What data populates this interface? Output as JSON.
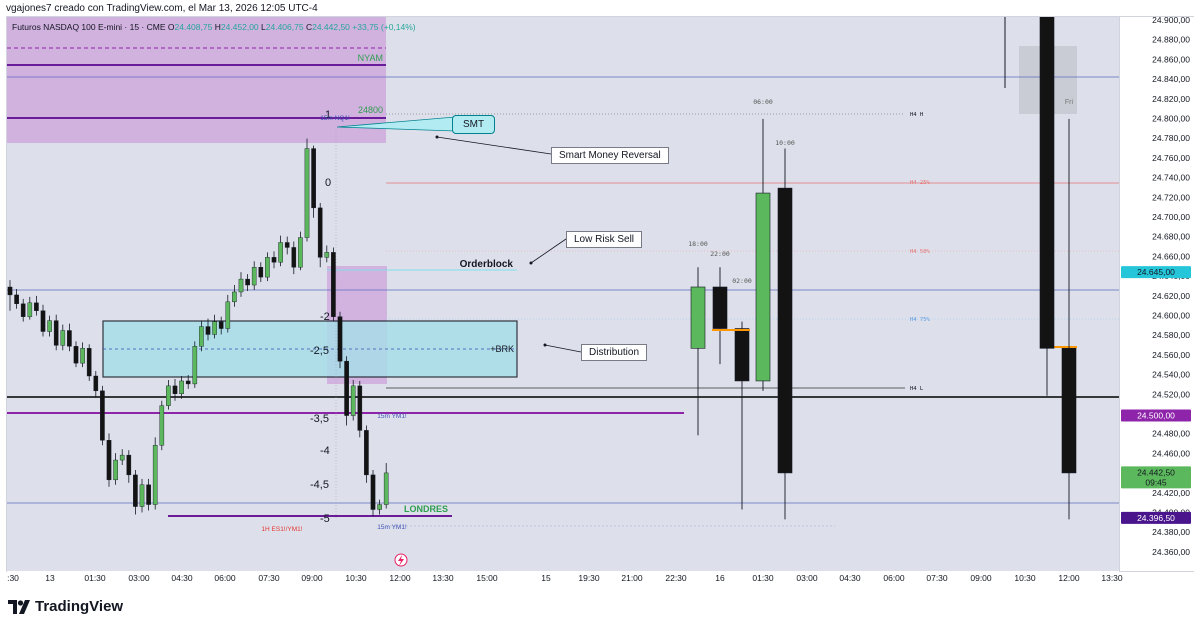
{
  "header": {
    "author_line": "vgajones7 creado con TradingView.com, el Mar 13, 2026 12:05 UTC-4",
    "symbol": "Futuros NASDAQ 100 E-mini · 15 · CME",
    "ohlc": [
      {
        "k": "O",
        "v": "24.408,75"
      },
      {
        "k": "H",
        "v": "24.452,00"
      },
      {
        "k": "L",
        "v": "24.406,75"
      },
      {
        "k": "C",
        "v": "24.442,50"
      }
    ],
    "change": "+33,75 (+0,14%)"
  },
  "brand": {
    "name": "TradingView",
    "logo_icon": "tradingview-logo-icon"
  },
  "colors": {
    "bull": "#5cb85c",
    "bear": "#131313",
    "purple_zone": "#cfa8dc",
    "cyan_zone": "#a8dde8",
    "purple_line": "#8e24aa",
    "black_line": "#000000",
    "cyan_badge": "#26c6da"
  },
  "chart_data": {
    "type": "candlestick",
    "y_range": [
      24350,
      24905
    ],
    "x_ticks": [
      ":30",
      "13",
      "01:30",
      "03:00",
      "04:30",
      "06:00",
      "07:30",
      "09:00",
      "10:30",
      "12:00",
      "13:30",
      "15:00",
      "15",
      "19:30",
      "21:00",
      "22:30",
      "16",
      "01:30",
      "03:00",
      "04:30",
      "06:00",
      "07:30",
      "09:00",
      "10:30",
      "12:00",
      "13:30"
    ],
    "y_ticks": [
      "24.900,00",
      "24.880,00",
      "24.860,00",
      "24.840,00",
      "24.820,00",
      "24.800,00",
      "24.780,00",
      "24.760,00",
      "24.740,00",
      "24.720,00",
      "24.700,00",
      "24.680,00",
      "24.660,00",
      "24.640,00",
      "24.620,00",
      "24.600,00",
      "24.580,00",
      "24.560,00",
      "24.540,00",
      "24.520,00",
      "24.500,00",
      "24.480,00",
      "24.460,00",
      "24.440,00",
      "24.420,00",
      "24.400,00",
      "24.380,00",
      "24.360,00"
    ],
    "price_badges": [
      {
        "label": "24.645,00",
        "price": 24645,
        "color": "#26c6da",
        "text_color": "#131722"
      },
      {
        "label": "24.500,00",
        "price": 24500,
        "color": "#8e24aa",
        "text_color": "#ffffff"
      },
      {
        "label": "24.442,50",
        "sub": "09:45",
        "price": 24442.5,
        "color": "#5cb85c",
        "text_color": "#131722"
      },
      {
        "label": "24.396,50",
        "price": 24396.5,
        "color": "#4a148c",
        "text_color": "#ffffff"
      }
    ],
    "candles_15m": [
      [
        24630,
        24622,
        24637,
        24606
      ],
      [
        24622,
        24613,
        24628,
        24608
      ],
      [
        24613,
        24600,
        24618,
        24595
      ],
      [
        24600,
        24614,
        24620,
        24597
      ],
      [
        24614,
        24606,
        24621,
        24601
      ],
      [
        24606,
        24585,
        24612,
        24580
      ],
      [
        24585,
        24596,
        24601,
        24580
      ],
      [
        24596,
        24571,
        24602,
        24566
      ],
      [
        24571,
        24586,
        24592,
        24566
      ],
      [
        24586,
        24570,
        24593,
        24565
      ],
      [
        24570,
        24553,
        24575,
        24549
      ],
      [
        24553,
        24568,
        24574,
        24549
      ],
      [
        24568,
        24540,
        24572,
        24535
      ],
      [
        24540,
        24525,
        24545,
        24518
      ],
      [
        24525,
        24475,
        24530,
        24470
      ],
      [
        24475,
        24435,
        24482,
        24428
      ],
      [
        24435,
        24455,
        24462,
        24430
      ],
      [
        24455,
        24460,
        24466,
        24450
      ],
      [
        24460,
        24440,
        24465,
        24432
      ],
      [
        24440,
        24408,
        24445,
        24400
      ],
      [
        24408,
        24430,
        24436,
        24402
      ],
      [
        24430,
        24410,
        24436,
        24404
      ],
      [
        24410,
        24470,
        24478,
        24405
      ],
      [
        24470,
        24510,
        24515,
        24465
      ],
      [
        24510,
        24530,
        24536,
        24506
      ],
      [
        24530,
        24522,
        24537,
        24515
      ],
      [
        24522,
        24535,
        24540,
        24517
      ],
      [
        24535,
        24532,
        24541,
        24527
      ],
      [
        24532,
        24570,
        24575,
        24528
      ],
      [
        24570,
        24590,
        24596,
        24565
      ],
      [
        24590,
        24582,
        24598,
        24576
      ],
      [
        24582,
        24595,
        24602,
        24578
      ],
      [
        24595,
        24588,
        24600,
        24582
      ],
      [
        24588,
        24615,
        24622,
        24584
      ],
      [
        24615,
        24625,
        24632,
        24610
      ],
      [
        24625,
        24638,
        24645,
        24620
      ],
      [
        24638,
        24632,
        24643,
        24626
      ],
      [
        24632,
        24650,
        24656,
        24627
      ],
      [
        24650,
        24640,
        24655,
        24635
      ],
      [
        24640,
        24660,
        24665,
        24636
      ],
      [
        24660,
        24655,
        24666,
        24649
      ],
      [
        24655,
        24675,
        24682,
        24651
      ],
      [
        24675,
        24670,
        24681,
        24663
      ],
      [
        24670,
        24650,
        24676,
        24643
      ],
      [
        24650,
        24680,
        24686,
        24647
      ],
      [
        24680,
        24770,
        24780,
        24676
      ],
      [
        24770,
        24710,
        24773,
        24700
      ],
      [
        24710,
        24660,
        24715,
        24650
      ],
      [
        24660,
        24665,
        24672,
        24655
      ],
      [
        24665,
        24600,
        24670,
        24595
      ],
      [
        24600,
        24555,
        24605,
        24548
      ],
      [
        24555,
        24500,
        24560,
        24490
      ],
      [
        24500,
        24530,
        24536,
        24495
      ],
      [
        24530,
        24485,
        24535,
        24478
      ],
      [
        24485,
        24440,
        24490,
        24432
      ],
      [
        24440,
        24405,
        24445,
        24398
      ],
      [
        24405,
        24410,
        24415,
        24400
      ],
      [
        24410,
        24442,
        24452,
        24406
      ]
    ],
    "candles_h4": [
      {
        "x": 698,
        "o": 24568,
        "c": 24630,
        "h": 24650,
        "l": 24480
      },
      {
        "x": 720,
        "o": 24630,
        "c": 24588,
        "h": 24650,
        "l": 24552
      },
      {
        "x": 742,
        "o": 24588,
        "c": 24535,
        "h": 24595,
        "l": 24405
      },
      {
        "x": 763,
        "o": 24535,
        "c": 24725,
        "h": 24800,
        "l": 24525
      },
      {
        "x": 785,
        "o": 24730,
        "c": 24442,
        "h": 24770,
        "l": 24395
      }
    ],
    "candles_daily": [
      {
        "x": 1047,
        "o": 24910,
        "c": 24568,
        "h": 24910,
        "l": 24520
      },
      {
        "x": 1069,
        "o": 24568,
        "c": 24442,
        "h": 24800,
        "l": 24395
      }
    ],
    "annotations": {
      "nyam": "NYAM",
      "level_24800": "24800",
      "smt": "SMT",
      "orderblock": "Orderblock",
      "brk": "+BRK",
      "londres": "LONDRES",
      "fib_ym": "15m YM1!",
      "fib_ym2": "15m YM1!",
      "fib_es": "1H ES1!/YM1!",
      "smt_small": "15m NQ1!",
      "fri": "Fri",
      "fib_levels": [
        "1",
        "0",
        "-2",
        "-2,5",
        "-3,5",
        "-4",
        "-4,5",
        "-5"
      ],
      "h4_times": [
        "18:00",
        "22:00",
        "02:00",
        "06:00",
        "10:00"
      ],
      "h4_labels": [
        "H4 H",
        "H4 25%",
        "H4 50%",
        "H4 75%",
        "H4 L"
      ]
    },
    "callouts": {
      "smart_money": "Smart Money Reversal",
      "low_risk": "Low Risk Sell",
      "distribution": "Distribution"
    }
  }
}
